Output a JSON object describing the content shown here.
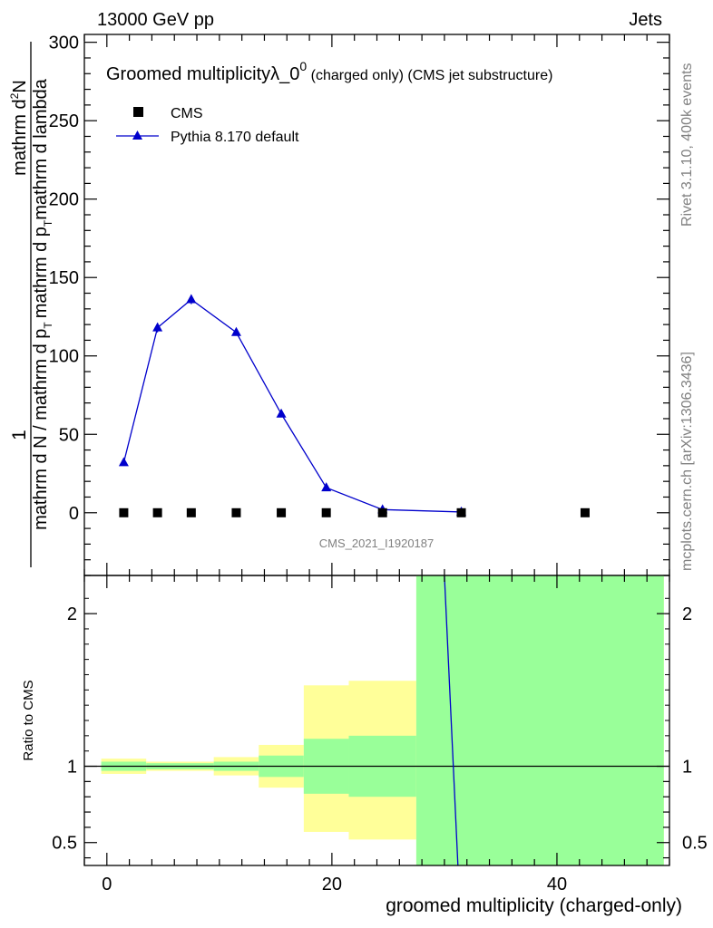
{
  "header": {
    "left": "13000 GeV pp",
    "right": "Jets"
  },
  "side_text": {
    "rivet": "Rivet 3.1.10,  400k events",
    "mcplots": "mcplots.cern.ch [arXiv:1306.3436]"
  },
  "colors": {
    "mc_line": "#0000cc",
    "data_marker": "#000000",
    "band_outer": "#ffff99",
    "band_inner": "#99ff99"
  },
  "chart_data": [
    {
      "type": "line",
      "title_main": "Groomed multiplicity",
      "title_lambda": "λ_0",
      "title_sup": "0",
      "title_rest": " (charged only) (CMS jet substructure)",
      "ylabel": {
        "num_one": "1",
        "num": "mathrm d",
        "num_sup": "2",
        "num_n": "N",
        "den_first": "mathrm d N / mathrm d p",
        "den_first_sub": "T",
        "den_second": "mathrm d p",
        "den_second_sub": "T",
        "den_second_tail": "mathrm d lambda"
      },
      "watermark": "CMS_2021_I1920187",
      "ylim": [
        -40,
        305
      ],
      "xlim": [
        -2,
        50
      ],
      "yticks": [
        0,
        50,
        100,
        150,
        200,
        250,
        300
      ],
      "legend_position": "top-left",
      "series": [
        {
          "name": "CMS",
          "marker": "square",
          "x": [
            1.5,
            4.5,
            7.5,
            11.5,
            15.5,
            19.5,
            24.5,
            31.5,
            42.5
          ],
          "y": [
            0,
            0,
            0,
            0,
            0,
            0,
            0,
            0,
            0
          ]
        },
        {
          "name": "Pythia 8.170 default",
          "marker": "triangle",
          "x": [
            1.5,
            4.5,
            7.5,
            11.5,
            15.5,
            19.5,
            24.5,
            31.5
          ],
          "y": [
            32,
            118,
            136,
            115,
            63,
            16,
            2,
            0.5
          ],
          "err": [
            1,
            3,
            3,
            2,
            1,
            0.5,
            0,
            0
          ]
        }
      ]
    },
    {
      "type": "area",
      "ylabel": "Ratio to CMS",
      "xlabel": "groomed multiplicity (charged-only)",
      "xlim": [
        -2,
        50
      ],
      "ylim": [
        0.35,
        2.25
      ],
      "xticks": [
        0,
        20,
        40
      ],
      "yticks": [
        0.5,
        1,
        2
      ],
      "ytick_labels": [
        "0.5",
        "1",
        "2"
      ],
      "reference": 1,
      "bands": [
        {
          "x0": -0.5,
          "x1": 3.5,
          "outer": [
            0.95,
            1.05
          ],
          "inner": [
            0.97,
            1.03
          ]
        },
        {
          "x0": 3.5,
          "x1": 5.5,
          "outer": [
            0.97,
            1.03
          ],
          "inner": [
            0.98,
            1.02
          ]
        },
        {
          "x0": 5.5,
          "x1": 9.5,
          "outer": [
            0.97,
            1.03
          ],
          "inner": [
            0.98,
            1.02
          ]
        },
        {
          "x0": 9.5,
          "x1": 13.5,
          "outer": [
            0.94,
            1.06
          ],
          "inner": [
            0.97,
            1.03
          ]
        },
        {
          "x0": 13.5,
          "x1": 17.5,
          "outer": [
            0.86,
            1.14
          ],
          "inner": [
            0.93,
            1.07
          ]
        },
        {
          "x0": 17.5,
          "x1": 21.5,
          "outer": [
            0.57,
            1.53
          ],
          "inner": [
            0.82,
            1.18
          ]
        },
        {
          "x0": 21.5,
          "x1": 27.5,
          "outer": [
            0.52,
            1.56
          ],
          "inner": [
            0.8,
            1.2
          ]
        },
        {
          "x0": 27.5,
          "x1": 49.5,
          "outer": [
            0.35,
            2.25
          ],
          "inner": [
            0.35,
            2.25
          ]
        }
      ],
      "mc_ratio": {
        "x": [
          30,
          31.2
        ],
        "y": [
          2.25,
          0.35
        ]
      }
    }
  ]
}
